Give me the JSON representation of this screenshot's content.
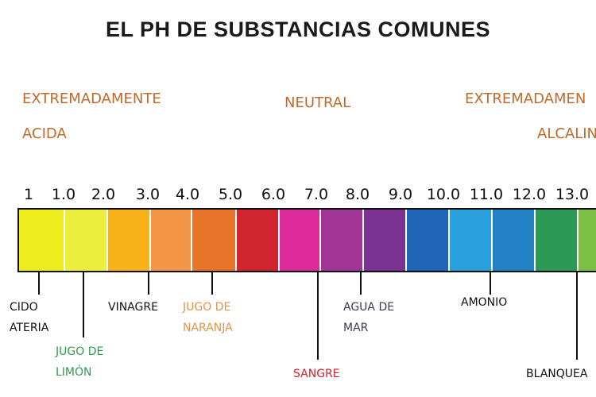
{
  "title": "EL PH DE SUBSTANCIAS COMUNES",
  "regions": {
    "acid_line1": "EXTREMADAMENTE",
    "acid_line2": "ACIDA",
    "neutral": "NEUTRAL",
    "alk_line1": "EXTREMADAMEN",
    "alk_line2": "ALCALIN"
  },
  "colors": {
    "region_text": "#c0692a",
    "scale": [
      "#eded1e",
      "#eded3c",
      "#f7b21a",
      "#f59646",
      "#e8742a",
      "#d0252e",
      "#dd2a9a",
      "#a03596",
      "#7a3192",
      "#1f66b6",
      "#2aa0dc",
      "#2280c4",
      "#2c9a56",
      "#7bbf44"
    ]
  },
  "ticks": [
    "1",
    "1.0",
    "2.0",
    "3.0",
    "4.0",
    "5.0",
    "6.0",
    "7.0",
    "8.0",
    "9.0",
    "10.0",
    "11.0",
    "12.0",
    "13.0"
  ],
  "substances": [
    {
      "line1": "CIDO",
      "line2": "ATERIA",
      "color": "#111111"
    },
    {
      "line1": "JUGO DE",
      "line2": "LIMÓN",
      "color": "#2e9a4e"
    },
    {
      "line1": "VINAGRE",
      "line2": "",
      "color": "#111111"
    },
    {
      "line1": "JUGO DE",
      "line2": "NARANJA",
      "color": "#e3944a"
    },
    {
      "line1": "SANGRE",
      "line2": "",
      "color": "#d4202f"
    },
    {
      "line1": "AGUA DE",
      "line2": "MAR",
      "color": "#3b3b55"
    },
    {
      "line1": "AMONIO",
      "line2": "",
      "color": "#111111"
    },
    {
      "line1": "BLANQUEA",
      "line2": "",
      "color": "#111111"
    }
  ]
}
